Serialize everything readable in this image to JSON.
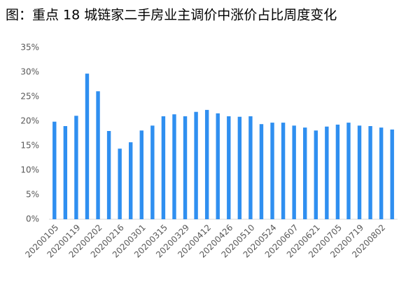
{
  "chart_data": {
    "type": "bar",
    "title": "图：重点 18 城链家二手房业主调价中涨价占比周度变化",
    "categories": [
      "20200105",
      null,
      "20200119",
      null,
      "20200202",
      null,
      "20200216",
      null,
      "20200301",
      null,
      "20200315",
      null,
      "20200329",
      null,
      "20200412",
      null,
      "20200426",
      null,
      "20200510",
      null,
      "20200524",
      null,
      "20200607",
      null,
      "20200621",
      null,
      "20200705",
      null,
      "20200719",
      null,
      "20200802",
      null
    ],
    "values": [
      19.9,
      19.0,
      21.1,
      29.7,
      26.1,
      18.0,
      14.4,
      15.7,
      18.1,
      19.1,
      21.0,
      21.4,
      21.0,
      21.9,
      22.3,
      21.6,
      21.0,
      20.9,
      21.0,
      19.4,
      19.7,
      19.7,
      19.1,
      18.7,
      18.1,
      18.9,
      19.3,
      19.7,
      19.1,
      19.0,
      18.7,
      18.3
    ],
    "color": "#2f8ff0",
    "ylim": [
      0,
      35
    ],
    "yticks": [
      {
        "value": 0,
        "label": "0%"
      },
      {
        "value": 5,
        "label": "5%"
      },
      {
        "value": 10,
        "label": "10%"
      },
      {
        "value": 15,
        "label": "15%"
      },
      {
        "value": 20,
        "label": "20%"
      },
      {
        "value": 25,
        "label": "25%"
      },
      {
        "value": 30,
        "label": "30%"
      },
      {
        "value": 35,
        "label": "35%"
      }
    ],
    "grid": false
  }
}
